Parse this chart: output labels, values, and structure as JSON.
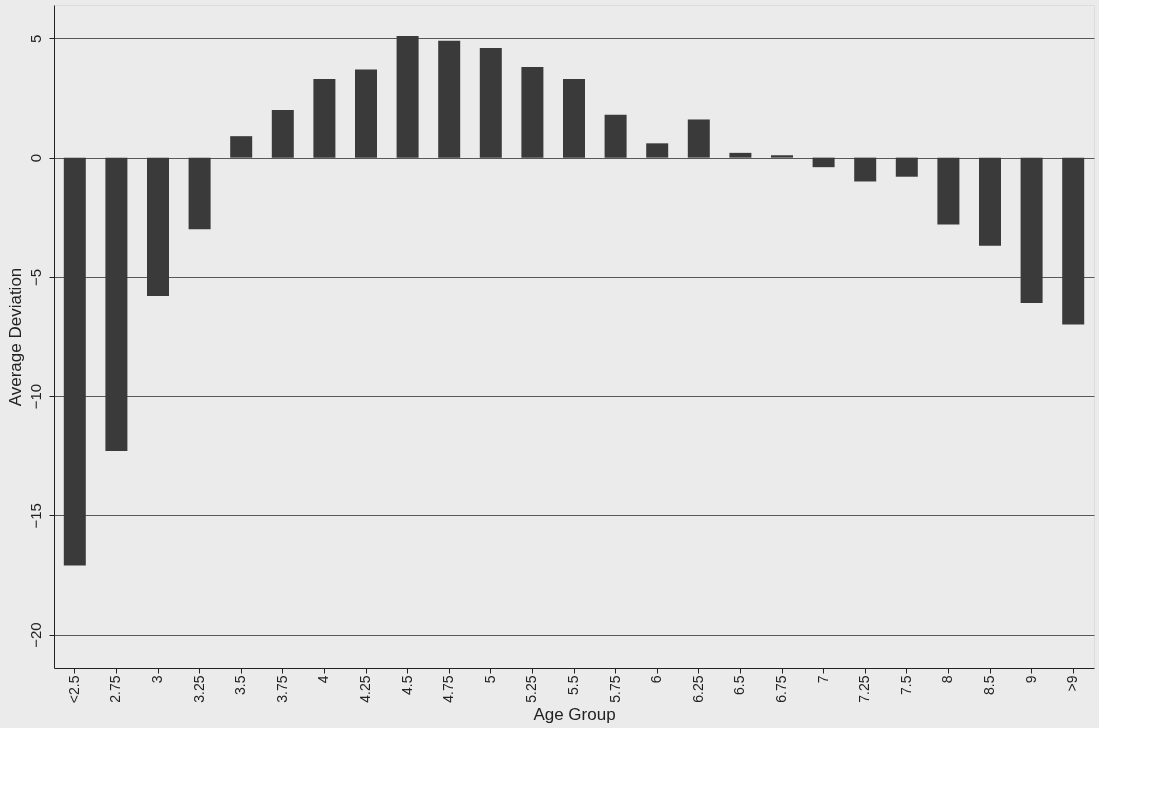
{
  "chart_data": {
    "type": "bar",
    "xlabel": "Age Group",
    "ylabel": "Average Deviation",
    "categories": [
      "<2.5",
      "2.75",
      "3",
      "3.25",
      "3.5",
      "3.75",
      "4",
      "4.25",
      "4.5",
      "4.75",
      "5",
      "5.25",
      "5.5",
      "5.75",
      "6",
      "6.25",
      "6.5",
      "6.75",
      "7",
      "7.25",
      "7.5",
      "8",
      "8.5",
      "9",
      ">9"
    ],
    "values": [
      -17.1,
      -12.3,
      -5.8,
      -3.0,
      0.9,
      2.0,
      3.3,
      3.7,
      5.1,
      4.9,
      4.6,
      3.8,
      3.3,
      1.8,
      0.6,
      1.6,
      0.2,
      0.1,
      -0.4,
      -1.0,
      -0.8,
      -2.8,
      -3.7,
      -6.1,
      -7.0
    ],
    "color": "#3a3a3a",
    "ylim": [
      -21.4,
      6.4
    ],
    "yticks": [
      -20,
      -15,
      -10,
      -5,
      0,
      5
    ],
    "grid": "y"
  }
}
